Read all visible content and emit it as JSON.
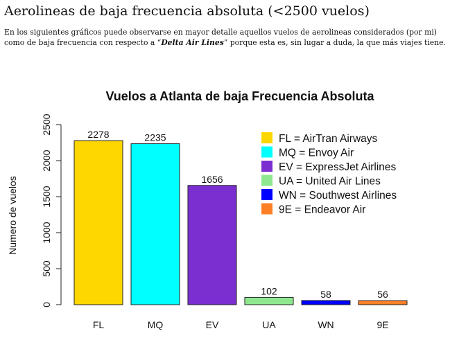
{
  "header": {
    "title": "Aerolineas de baja frecuencia absoluta (<2500 vuelos)",
    "intro_before": "En los siguientes gráficos puede observarse en mayor detalle aquellos vuelos de aerolineas considerados (por mi) como de baja frecuencia con respecto a “",
    "intro_emph": "Delta Air Lines",
    "intro_after": "” porque esta es, sin lugar a duda, la que más viajes tiene."
  },
  "chart_data": {
    "type": "bar",
    "title": "Vuelos a Atlanta de baja Frecuencia Absoluta",
    "xlabel": "",
    "ylabel": "Numero de vuelos",
    "ylim": [
      0,
      2500
    ],
    "yticks": [
      0,
      500,
      1000,
      1500,
      2000,
      2500
    ],
    "categories": [
      "FL",
      "MQ",
      "EV",
      "UA",
      "WN",
      "9E"
    ],
    "values": [
      2278,
      2235,
      1656,
      102,
      58,
      56
    ],
    "data_labels": [
      "2278",
      "2235",
      "1656",
      "102",
      "58",
      "56"
    ],
    "colors": [
      "#FFD700",
      "#00FFFF",
      "#7B2FD0",
      "#8FE88F",
      "#0000FF",
      "#FF7F27"
    ],
    "legend": {
      "placement": "top-right",
      "entries": [
        {
          "label": "FL = AirTran Airways",
          "color": "#FFD700"
        },
        {
          "label": "MQ = Envoy Air",
          "color": "#00FFFF"
        },
        {
          "label": "EV = ExpressJet Airlines",
          "color": "#7B2FD0"
        },
        {
          "label": "UA = United Air Lines",
          "color": "#8FE88F"
        },
        {
          "label": "WN = Southwest Airlines",
          "color": "#0000FF"
        },
        {
          "label": "9E = Endeavor Air",
          "color": "#FF7F27"
        }
      ]
    },
    "grid": false
  }
}
